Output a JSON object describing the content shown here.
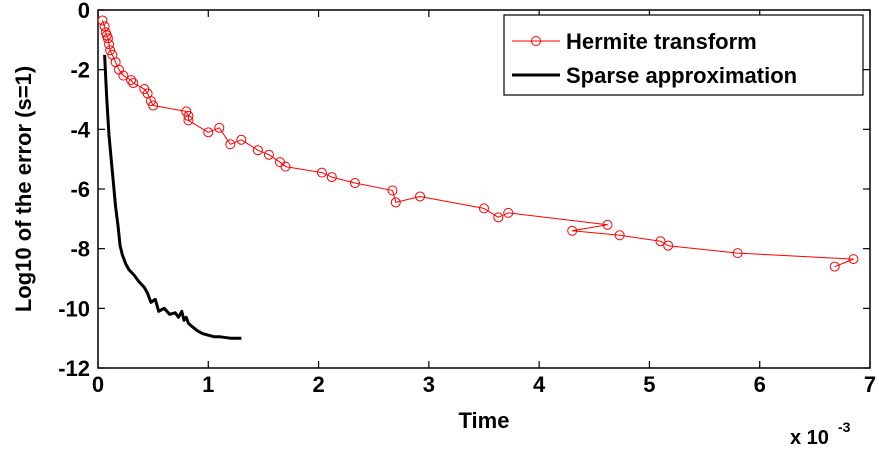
{
  "chart_data": {
    "type": "line",
    "xlabel": "Time",
    "ylabel": "Log10 of the error (s=1)",
    "x_multiplier_label": "x 10",
    "x_multiplier_exponent": "-3",
    "xlim": [
      0,
      7
    ],
    "ylim": [
      -12,
      0
    ],
    "xticks": [
      "0",
      "1",
      "2",
      "3",
      "4",
      "5",
      "6",
      "7"
    ],
    "yticks": [
      "0",
      "-2",
      "-4",
      "-6",
      "-8",
      "-10",
      "-12"
    ],
    "grid": false,
    "legend_position": "top-right",
    "series": [
      {
        "name": "Hermite transform",
        "color": "#ff0000",
        "marker": "circle",
        "x": [
          0.04,
          0.06,
          0.07,
          0.08,
          0.09,
          0.1,
          0.11,
          0.13,
          0.16,
          0.19,
          0.23,
          0.3,
          0.32,
          0.42,
          0.45,
          0.48,
          0.5,
          0.8,
          0.82,
          0.82,
          1.0,
          1.1,
          1.2,
          1.3,
          1.45,
          1.55,
          1.65,
          1.7,
          2.03,
          2.12,
          2.33,
          2.67,
          2.7,
          2.92,
          3.5,
          3.63,
          3.72,
          4.62,
          4.3,
          4.73,
          5.1,
          5.17,
          5.8,
          6.85,
          6.68
        ],
        "y": [
          -0.35,
          -0.55,
          -0.75,
          -0.85,
          -0.95,
          -1.15,
          -1.35,
          -1.5,
          -1.75,
          -2.0,
          -2.2,
          -2.35,
          -2.45,
          -2.65,
          -2.8,
          -3.05,
          -3.2,
          -3.4,
          -3.55,
          -3.7,
          -4.1,
          -3.95,
          -4.5,
          -4.35,
          -4.7,
          -4.85,
          -5.1,
          -5.25,
          -5.45,
          -5.6,
          -5.8,
          -6.05,
          -6.45,
          -6.25,
          -6.65,
          -6.95,
          -6.8,
          -7.2,
          -7.4,
          -7.55,
          -7.75,
          -7.9,
          -8.15,
          -8.35,
          -8.6
        ]
      },
      {
        "name": "Sparse approximation",
        "color": "#000000",
        "marker": "none",
        "x": [
          0.06,
          0.08,
          0.1,
          0.12,
          0.14,
          0.16,
          0.18,
          0.2,
          0.22,
          0.25,
          0.28,
          0.33,
          0.37,
          0.42,
          0.45,
          0.48,
          0.52,
          0.55,
          0.6,
          0.65,
          0.7,
          0.73,
          0.76,
          0.78,
          0.8,
          0.82,
          0.85,
          0.9,
          0.95,
          1.0,
          1.05,
          1.1,
          1.2,
          1.3
        ],
        "y": [
          -1.5,
          -3.0,
          -4.2,
          -5.0,
          -5.8,
          -6.6,
          -7.2,
          -7.9,
          -8.2,
          -8.5,
          -8.7,
          -8.9,
          -9.1,
          -9.3,
          -9.5,
          -9.8,
          -9.7,
          -10.1,
          -10.0,
          -10.2,
          -10.15,
          -10.3,
          -10.1,
          -10.4,
          -10.3,
          -10.5,
          -10.6,
          -10.75,
          -10.85,
          -10.9,
          -10.95,
          -10.95,
          -11.0,
          -11.0
        ]
      }
    ]
  }
}
